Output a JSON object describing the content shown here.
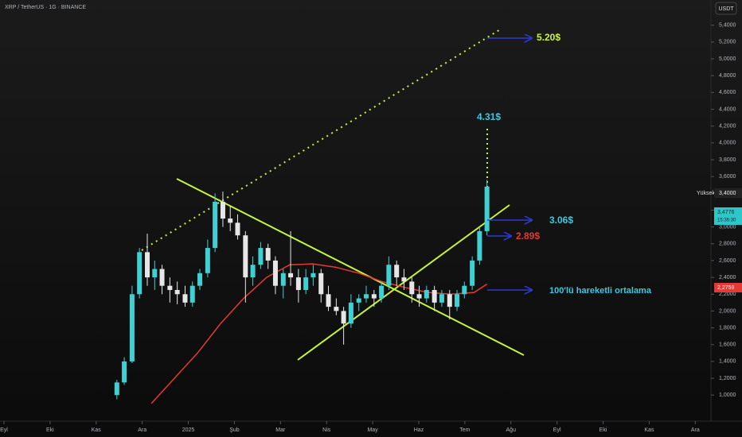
{
  "chart_data": {
    "type": "candlestick",
    "title": "XRP / TetherUS · 1G · BINANCE",
    "currency_button": "USDT",
    "xlim": [
      -0.086,
      15.34
    ],
    "xticks": [
      {
        "value": 0,
        "label": "Eyl"
      },
      {
        "value": 1,
        "label": "Eki"
      },
      {
        "value": 2,
        "label": "Kas"
      },
      {
        "value": 3,
        "label": "Ara"
      },
      {
        "value": 4,
        "label": "2025"
      },
      {
        "value": 5,
        "label": "Şub"
      },
      {
        "value": 6,
        "label": "Mar"
      },
      {
        "value": 7,
        "label": "Nis"
      },
      {
        "value": 8,
        "label": "May"
      },
      {
        "value": 9,
        "label": "Haz"
      },
      {
        "value": 10,
        "label": "Tem"
      },
      {
        "value": 11,
        "label": "Ağu"
      },
      {
        "value": 12,
        "label": "Eyl"
      },
      {
        "value": 13,
        "label": "Eki"
      },
      {
        "value": 14,
        "label": "Kas"
      },
      {
        "value": 15,
        "label": "Ara"
      }
    ],
    "ylim": [
      0.69,
      5.7
    ],
    "yticks": [
      {
        "value": 1.0,
        "label": "1,0000"
      },
      {
        "value": 1.2,
        "label": "1,2000"
      },
      {
        "value": 1.4,
        "label": "1,4000"
      },
      {
        "value": 1.6,
        "label": "1,6000"
      },
      {
        "value": 1.8,
        "label": "1,8000"
      },
      {
        "value": 2.0,
        "label": "2,0000"
      },
      {
        "value": 2.2,
        "label": "2,2000"
      },
      {
        "value": 2.4,
        "label": "2,4000"
      },
      {
        "value": 2.6,
        "label": "2,6000"
      },
      {
        "value": 2.8,
        "label": "2,8000"
      },
      {
        "value": 3.0,
        "label": "3,0000"
      },
      {
        "value": 3.2,
        "label": "3,2000"
      },
      {
        "value": 3.4,
        "label": "3,4000"
      },
      {
        "value": 3.6,
        "label": "3,6000"
      },
      {
        "value": 3.8,
        "label": "3,8000"
      },
      {
        "value": 4.0,
        "label": "4,0000"
      },
      {
        "value": 4.2,
        "label": "4,2000"
      },
      {
        "value": 4.4,
        "label": "4,4000"
      },
      {
        "value": 4.6,
        "label": "4,6000"
      },
      {
        "value": 4.8,
        "label": "4,8000"
      },
      {
        "value": 5.0,
        "label": "5,0000"
      },
      {
        "value": 5.2,
        "label": "5,2000"
      },
      {
        "value": 5.4,
        "label": "5,4000"
      }
    ],
    "up_color": "#3fd0d4",
    "down_color": "#e6e6e6",
    "x": [
      2.45,
      2.61,
      2.78,
      2.94,
      3.11,
      3.27,
      3.43,
      3.6,
      3.76,
      3.93,
      4.09,
      4.25,
      4.42,
      4.58,
      4.75,
      4.91,
      5.07,
      5.24,
      5.4,
      5.57,
      5.73,
      5.89,
      6.06,
      6.22,
      6.39,
      6.55,
      6.71,
      6.88,
      7.04,
      7.21,
      7.37,
      7.53,
      7.7,
      7.86,
      8.03,
      8.19,
      8.35,
      8.52,
      8.68,
      8.85,
      9.01,
      9.17,
      9.34,
      9.5,
      9.67,
      9.83,
      9.99,
      10.16,
      10.32,
      10.48
    ],
    "open": [
      1.0,
      1.15,
      1.4,
      2.2,
      2.7,
      2.4,
      2.5,
      2.3,
      2.25,
      2.2,
      2.1,
      2.3,
      2.45,
      2.75,
      3.3,
      3.1,
      3.05,
      2.9,
      2.4,
      2.55,
      2.75,
      2.6,
      2.3,
      2.45,
      2.4,
      2.25,
      2.4,
      2.45,
      2.2,
      2.05,
      2.0,
      1.85,
      2.1,
      2.15,
      2.2,
      2.15,
      2.3,
      2.55,
      2.4,
      2.35,
      2.2,
      2.15,
      2.25,
      2.1,
      2.2,
      2.05,
      2.2,
      2.3,
      2.6,
      2.95
    ],
    "high": [
      1.18,
      1.45,
      2.3,
      2.75,
      2.92,
      2.6,
      2.55,
      2.4,
      2.35,
      2.3,
      2.35,
      2.5,
      2.85,
      3.4,
      3.42,
      3.25,
      3.15,
      2.95,
      2.65,
      2.82,
      2.8,
      2.65,
      2.5,
      2.95,
      2.5,
      2.5,
      2.55,
      2.5,
      2.3,
      2.15,
      2.05,
      2.2,
      2.2,
      2.3,
      2.25,
      2.35,
      2.65,
      2.6,
      2.5,
      2.4,
      2.3,
      2.3,
      2.3,
      2.25,
      2.25,
      2.25,
      2.35,
      2.65,
      3.0,
      3.56
    ],
    "low": [
      0.95,
      1.12,
      1.38,
      2.15,
      2.3,
      2.25,
      2.2,
      2.1,
      2.08,
      2.05,
      2.05,
      2.25,
      2.4,
      2.7,
      3.0,
      2.95,
      2.85,
      2.1,
      2.3,
      2.5,
      2.5,
      2.2,
      2.15,
      2.3,
      2.1,
      2.2,
      2.3,
      2.1,
      2.0,
      1.95,
      1.6,
      1.8,
      2.0,
      2.1,
      2.05,
      2.1,
      2.25,
      2.3,
      2.25,
      2.1,
      2.05,
      2.1,
      2.0,
      2.05,
      1.9,
      2.0,
      2.15,
      2.25,
      2.55,
      2.9
    ],
    "close": [
      1.15,
      1.4,
      2.2,
      2.7,
      2.4,
      2.5,
      2.3,
      2.25,
      2.2,
      2.1,
      2.3,
      2.45,
      2.75,
      3.3,
      3.1,
      3.05,
      2.9,
      2.4,
      2.55,
      2.75,
      2.6,
      2.3,
      2.45,
      2.4,
      2.25,
      2.4,
      2.45,
      2.2,
      2.05,
      2.0,
      1.85,
      2.1,
      2.15,
      2.2,
      2.15,
      2.3,
      2.55,
      2.4,
      2.35,
      2.2,
      2.15,
      2.25,
      2.1,
      2.2,
      2.05,
      2.2,
      2.3,
      2.6,
      2.95,
      3.48
    ],
    "moving_average": {
      "color": "#e53935",
      "x": [
        3.2,
        3.7,
        4.2,
        4.7,
        5.2,
        5.7,
        6.2,
        6.7,
        7.2,
        7.7,
        8.2,
        8.7,
        9.2,
        9.7,
        10.2,
        10.48
      ],
      "values": [
        0.9,
        1.2,
        1.5,
        1.85,
        2.15,
        2.4,
        2.55,
        2.56,
        2.52,
        2.45,
        2.35,
        2.28,
        2.22,
        2.2,
        2.22,
        2.32
      ]
    },
    "annotations": {
      "target_high": "5.20$",
      "target_mid": "4.31$",
      "level_a": "3.06$",
      "level_b": "2.89$",
      "ma_label": "100'lü hareketli ortalama"
    },
    "high_label": "Yüksek",
    "high_price": "3,4000",
    "last_price": "3,4776",
    "countdown": "15:36:30",
    "ma_price": "2,2759"
  }
}
